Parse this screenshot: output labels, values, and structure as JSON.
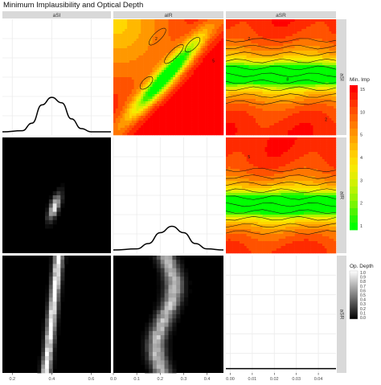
{
  "title": "Minimum Implausibility and Optical Depth",
  "chart_data": {
    "type": "pairs-plot",
    "title": "Minimum Implausibility and Optical Depth",
    "variables": [
      "aSI",
      "aIR",
      "aSR"
    ],
    "column_strips": [
      "aSI",
      "aIR",
      "aSR"
    ],
    "row_strips": [
      "aSI",
      "aIR",
      "aSR"
    ],
    "axes": {
      "aSI": {
        "range": [
          0.15,
          0.7
        ],
        "ticks": [
          "0.2",
          "0.4",
          "0.6"
        ]
      },
      "aIR": {
        "range": [
          0.0,
          0.47
        ],
        "ticks": [
          "0.0",
          "0.1",
          "0.2",
          "0.3",
          "0.4"
        ]
      },
      "aSR": {
        "range": [
          -0.002,
          0.048
        ],
        "ticks": [
          "0.00",
          "0.01",
          "0.02",
          "0.03",
          "0.04"
        ]
      }
    },
    "diagonal_type": "density",
    "upper_type": "filled-contour",
    "lower_type": "heatmap",
    "legends": {
      "min_imp": {
        "title": "Min. Imp",
        "ticks": [
          "15",
          "10",
          "5",
          "4",
          "3",
          "2",
          "1"
        ],
        "colors": [
          "#ff0000",
          "#ff2a00",
          "#ff5200",
          "#ff7600",
          "#ff9800",
          "#ffb800",
          "#ffd700",
          "#f6ea00",
          "#d9f000",
          "#b2f400",
          "#7ef500",
          "#3df200",
          "#00ff00"
        ]
      },
      "op_depth": {
        "title": "Op. Depth",
        "ticks": [
          "1.0",
          "0.9",
          "0.8",
          "0.7",
          "0.6",
          "0.5",
          "0.4",
          "0.3",
          "0.2",
          "0.1",
          "0.0"
        ],
        "colors": [
          "#ffffff",
          "#000000"
        ]
      }
    },
    "density_curves": {
      "aSI": {
        "x": [
          0.15,
          0.25,
          0.3,
          0.35,
          0.4,
          0.45,
          0.5,
          0.55,
          0.6,
          0.7
        ],
        "y": [
          0.0,
          0.01,
          0.08,
          0.25,
          0.32,
          0.27,
          0.12,
          0.03,
          0.0,
          0.0
        ]
      },
      "aIR": {
        "x": [
          0.0,
          0.1,
          0.15,
          0.2,
          0.25,
          0.3,
          0.35,
          0.4,
          0.47
        ],
        "y": [
          0.0,
          0.01,
          0.06,
          0.16,
          0.22,
          0.16,
          0.06,
          0.01,
          0.0
        ]
      },
      "aSR": {
        "x": [
          -0.002,
          0.01,
          0.02,
          0.03,
          0.04,
          0.048
        ],
        "y": [
          0.01,
          0.01,
          0.01,
          0.01,
          0.01,
          0.01
        ]
      }
    },
    "panel_labels": {
      "aSI_aIR": [
        "2",
        "5"
      ],
      "aSI_aSR": [
        "2",
        "8",
        "2"
      ],
      "aIR_aSR": [
        "5"
      ]
    }
  }
}
